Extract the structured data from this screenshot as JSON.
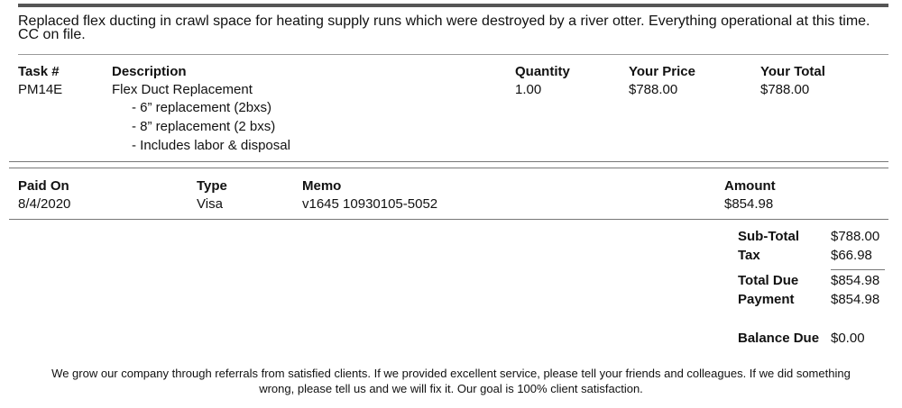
{
  "note": "Replaced flex ducting in crawl space for heating supply runs which were destroyed by a river otter. Everything operational at this time. CC on file.",
  "tasks": {
    "headers": {
      "task": "Task #",
      "description": "Description",
      "quantity": "Quantity",
      "price": "Your Price",
      "total": "Your Total"
    },
    "rows": [
      {
        "task": "PM14E",
        "description": "Flex Duct Replacement",
        "details": [
          "- 6” replacement (2bxs)",
          "- 8” replacement (2 bxs)",
          "- Includes labor & disposal"
        ],
        "quantity": "1.00",
        "price": "$788.00",
        "total": "$788.00"
      }
    ]
  },
  "payments": {
    "headers": {
      "paid_on": "Paid On",
      "type": "Type",
      "memo": "Memo",
      "amount": "Amount"
    },
    "rows": [
      {
        "paid_on": "8/4/2020",
        "type": "Visa",
        "memo": "v1645 10930105-5052",
        "amount": "$854.98"
      }
    ]
  },
  "totals": {
    "subtotal_label": "Sub-Total",
    "subtotal": "$788.00",
    "tax_label": "Tax",
    "tax": "$66.98",
    "total_due_label": "Total Due",
    "total_due": "$854.98",
    "payment_label": "Payment",
    "payment": "$854.98",
    "balance_label": "Balance Due",
    "balance": "$0.00"
  },
  "footer": {
    "line1": "We grow our company through referrals from satisfied clients. If we provided excellent service, please tell your friends and colleagues. If we did something",
    "line2": "wrong, please tell us and we will fix it. Our goal is 100% client satisfaction."
  }
}
